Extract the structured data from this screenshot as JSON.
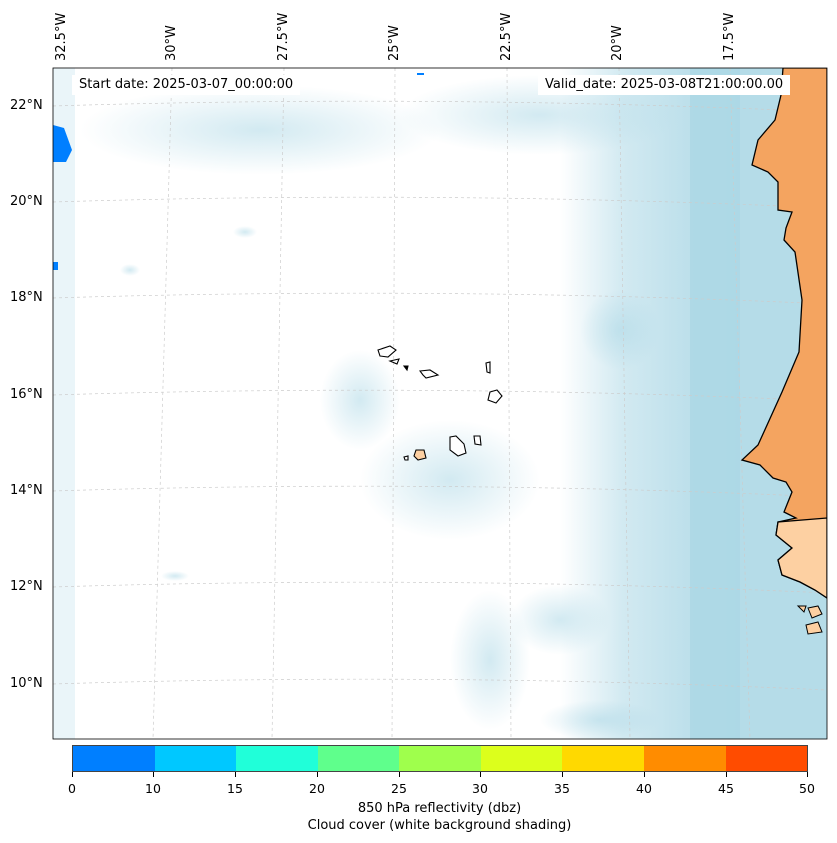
{
  "header": {
    "start_date": "Start date: 2025-03-07_00:00:00",
    "valid_date": "Valid_date: 2025-03-08T21:00:00.00"
  },
  "map": {
    "longitude_labels": [
      "32.5°W",
      "30°W",
      "27.5°W",
      "25°W",
      "22.5°W",
      "20°W",
      "17.5°W"
    ],
    "latitude_labels": [
      "22°N",
      "20°N",
      "18°N",
      "16°N",
      "14°N",
      "12°N",
      "10°N"
    ],
    "colors": {
      "land_mainland": "#f4a460",
      "land_islands": "#fdd0a2",
      "cloud": "#add8e6",
      "grid": "#cccccc"
    }
  },
  "colorbar": {
    "ticks": [
      "0",
      "10",
      "15",
      "20",
      "25",
      "30",
      "35",
      "40",
      "45",
      "50"
    ],
    "colors": [
      "#007fff",
      "#00c8ff",
      "#20ffd9",
      "#5fff8c",
      "#9fff4c",
      "#dcff1c",
      "#ffd900",
      "#ff8c00",
      "#ff4c00"
    ],
    "label_line1": "850 hPa reflectivity (dbz)",
    "label_line2": "Cloud cover (white background shading)"
  }
}
